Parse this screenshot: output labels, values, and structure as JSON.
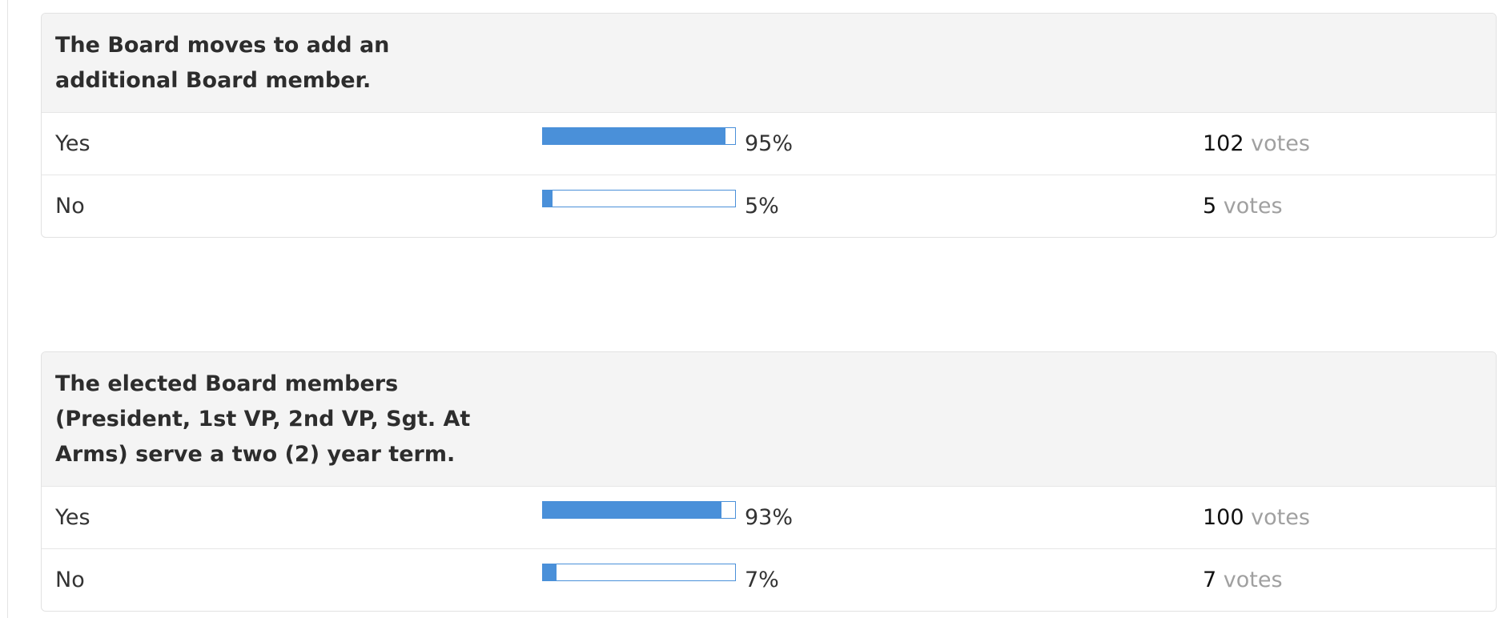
{
  "polls": [
    {
      "question": "The Board moves to add an additional Board member.",
      "options": [
        {
          "label": "Yes",
          "percent": 95,
          "percent_label": "95%",
          "votes": 102,
          "votes_word": "votes"
        },
        {
          "label": "No",
          "percent": 5,
          "percent_label": "5%",
          "votes": 5,
          "votes_word": "votes"
        }
      ]
    },
    {
      "question": "The elected Board members (President, 1st VP, 2nd VP, Sgt. At Arms) serve a two (2) year term.",
      "options": [
        {
          "label": "Yes",
          "percent": 93,
          "percent_label": "93%",
          "votes": 100,
          "votes_word": "votes"
        },
        {
          "label": "No",
          "percent": 7,
          "percent_label": "7%",
          "votes": 7,
          "votes_word": "votes"
        }
      ]
    }
  ]
}
